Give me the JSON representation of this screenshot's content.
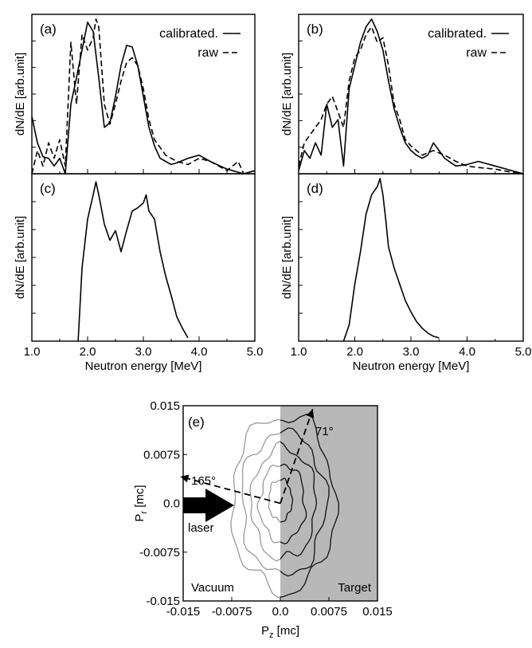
{
  "chart_data": [
    {
      "id": "a",
      "type": "line",
      "panel_label": "(a)",
      "ylabel": "dN/dE [arb.unit]",
      "xlim": [
        1.0,
        5.0
      ],
      "ylim": [
        0,
        1.0
      ],
      "legend": "top-right",
      "series": [
        {
          "name": "calibrated.",
          "style": "solid",
          "x": [
            1.0,
            1.1,
            1.2,
            1.3,
            1.4,
            1.5,
            1.6,
            1.7,
            1.8,
            1.9,
            2.0,
            2.1,
            2.2,
            2.3,
            2.4,
            2.5,
            2.6,
            2.7,
            2.8,
            2.9,
            3.0,
            3.1,
            3.2,
            3.3,
            3.4,
            3.5,
            3.6,
            3.8,
            4.0,
            4.2,
            4.5,
            4.8,
            5.0
          ],
          "y": [
            0.37,
            0.2,
            0.11,
            0.1,
            0.05,
            0.1,
            0.0,
            0.45,
            0.62,
            0.8,
            0.98,
            0.92,
            0.62,
            0.3,
            0.33,
            0.5,
            0.7,
            0.83,
            0.82,
            0.7,
            0.5,
            0.3,
            0.18,
            0.1,
            0.08,
            0.06,
            0.07,
            0.1,
            0.12,
            0.08,
            0.03,
            0.0,
            0.02
          ]
        },
        {
          "name": "raw",
          "style": "dashed",
          "x": [
            1.0,
            1.1,
            1.2,
            1.3,
            1.4,
            1.5,
            1.6,
            1.7,
            1.8,
            1.9,
            2.0,
            2.1,
            2.15,
            2.2,
            2.3,
            2.4,
            2.5,
            2.6,
            2.7,
            2.8,
            2.9,
            3.0,
            3.1,
            3.2,
            3.4,
            3.6,
            3.8,
            4.0,
            4.2,
            4.5,
            4.7,
            4.8,
            5.0
          ],
          "y": [
            0.0,
            0.15,
            0.05,
            0.2,
            0.1,
            0.22,
            0.05,
            0.85,
            0.45,
            0.9,
            0.8,
            0.88,
            1.0,
            0.95,
            0.45,
            0.32,
            0.45,
            0.6,
            0.72,
            0.75,
            0.7,
            0.55,
            0.35,
            0.22,
            0.12,
            0.08,
            0.06,
            0.1,
            0.08,
            0.02,
            0.08,
            0.0,
            0.02
          ]
        }
      ]
    },
    {
      "id": "b",
      "type": "line",
      "panel_label": "(b)",
      "ylabel": "dN/dE [arb.unit]",
      "xlim": [
        1.0,
        5.0
      ],
      "ylim": [
        0,
        1.0
      ],
      "legend": "top-right",
      "series": [
        {
          "name": "calibrated.",
          "style": "solid",
          "x": [
            1.0,
            1.1,
            1.2,
            1.3,
            1.4,
            1.5,
            1.6,
            1.7,
            1.8,
            1.9,
            2.0,
            2.1,
            2.2,
            2.3,
            2.4,
            2.5,
            2.6,
            2.7,
            2.8,
            2.9,
            3.0,
            3.1,
            3.2,
            3.3,
            3.4,
            3.5,
            3.6,
            3.8,
            4.0,
            4.2,
            4.5,
            4.8,
            5.0
          ],
          "y": [
            0.02,
            0.15,
            0.1,
            0.2,
            0.12,
            0.45,
            0.3,
            0.35,
            0.05,
            0.55,
            0.7,
            0.85,
            0.95,
            1.0,
            0.92,
            0.8,
            0.6,
            0.42,
            0.3,
            0.2,
            0.15,
            0.12,
            0.1,
            0.12,
            0.2,
            0.15,
            0.1,
            0.05,
            0.06,
            0.08,
            0.05,
            0.02,
            0.0
          ]
        },
        {
          "name": "raw",
          "style": "dashed",
          "x": [
            1.0,
            1.1,
            1.2,
            1.3,
            1.4,
            1.5,
            1.6,
            1.7,
            1.8,
            1.9,
            2.0,
            2.1,
            2.2,
            2.3,
            2.4,
            2.5,
            2.6,
            2.7,
            2.8,
            2.9,
            3.0,
            3.2,
            3.4,
            3.6,
            3.8,
            4.0,
            4.2,
            4.5,
            4.8,
            5.0
          ],
          "y": [
            0.05,
            0.2,
            0.25,
            0.3,
            0.35,
            0.45,
            0.5,
            0.4,
            0.3,
            0.6,
            0.75,
            0.8,
            0.9,
            0.95,
            0.85,
            0.88,
            0.7,
            0.45,
            0.35,
            0.22,
            0.18,
            0.12,
            0.15,
            0.12,
            0.08,
            0.05,
            0.04,
            0.03,
            0.01,
            0.0
          ]
        }
      ]
    },
    {
      "id": "c",
      "type": "line",
      "panel_label": "(c)",
      "ylabel": "dN/dE [arb.unit]",
      "xlabel": "Neutron energy [MeV]",
      "xlim": [
        1.0,
        5.0
      ],
      "ylim": [
        0,
        1.0
      ],
      "xticks": [
        "1.0",
        "2.0",
        "3.0",
        "4.0",
        "5.0"
      ],
      "series": [
        {
          "style": "solid",
          "x": [
            1.83,
            1.9,
            2.0,
            2.1,
            2.15,
            2.2,
            2.3,
            2.4,
            2.5,
            2.6,
            2.7,
            2.8,
            2.9,
            3.0,
            3.05,
            3.1,
            3.2,
            3.3,
            3.4,
            3.5,
            3.6,
            3.7,
            3.8
          ],
          "y": [
            0.0,
            0.45,
            0.75,
            0.9,
            0.98,
            0.9,
            0.72,
            0.62,
            0.68,
            0.55,
            0.68,
            0.8,
            0.82,
            0.85,
            0.9,
            0.8,
            0.75,
            0.55,
            0.4,
            0.28,
            0.15,
            0.08,
            0.02
          ]
        }
      ]
    },
    {
      "id": "d",
      "type": "line",
      "panel_label": "(d)",
      "ylabel": "dN/dE [arb.unit]",
      "xlabel": "Neutron energy [MeV]",
      "xlim": [
        1.0,
        5.0
      ],
      "ylim": [
        0,
        1.0
      ],
      "xticks": [
        "1.0",
        "2.0",
        "3.0",
        "4.0",
        "5.0"
      ],
      "series": [
        {
          "style": "solid",
          "x": [
            1.8,
            1.9,
            2.0,
            2.1,
            2.2,
            2.3,
            2.4,
            2.45,
            2.5,
            2.55,
            2.6,
            2.7,
            2.8,
            2.9,
            3.0,
            3.1,
            3.2,
            3.3,
            3.4,
            3.5
          ],
          "y": [
            0.0,
            0.1,
            0.35,
            0.55,
            0.78,
            0.9,
            0.95,
            1.0,
            0.9,
            0.75,
            0.58,
            0.45,
            0.35,
            0.25,
            0.18,
            0.12,
            0.08,
            0.05,
            0.03,
            0.02
          ]
        }
      ]
    },
    {
      "id": "e",
      "type": "contour",
      "panel_label": "(e)",
      "xlabel_main": "P",
      "xlabel_sub": "z",
      "xlabel_unit": " [mc]",
      "ylabel_main": "P",
      "ylabel_sub": "r",
      "ylabel_unit": " [mc]",
      "xlim": [
        -0.015,
        0.015
      ],
      "ylim": [
        -0.015,
        0.015
      ],
      "xticks": [
        -0.015,
        -0.0075,
        0.0,
        0.0075,
        0.015
      ],
      "xtick_labels": [
        "-0.015",
        "-0.0075",
        "0.0",
        "0.0075",
        "0.015"
      ],
      "yticks": [
        0.015,
        0.0075,
        0.0,
        -0.0075,
        -0.015
      ],
      "ytick_labels": [
        "0.015",
        "0.0075",
        "0.0",
        "-0.0075",
        "-0.015"
      ],
      "regions": [
        {
          "label": "Vacuum",
          "x_range": [
            -0.015,
            0.0
          ],
          "color": "#ffffff"
        },
        {
          "label": "Target",
          "x_range": [
            0.0,
            0.015
          ],
          "color": "#b8b8b8"
        }
      ],
      "contour_rx": [
        0.008,
        0.0065,
        0.005,
        0.0035,
        0.0018
      ],
      "contour_ry": [
        0.0135,
        0.011,
        0.0085,
        0.006,
        0.0032
      ],
      "contour_cx": [
        0.0005,
        0.0005,
        0.0005,
        0.0003,
        0.0
      ],
      "contour_cy": [
        0.0,
        0.0,
        0.0,
        0.0,
        0.0005
      ],
      "annotations": [
        {
          "text": "165°",
          "angle_deg": 165
        },
        {
          "text": "71°",
          "angle_deg": 71
        },
        {
          "text": "laser"
        }
      ]
    }
  ]
}
